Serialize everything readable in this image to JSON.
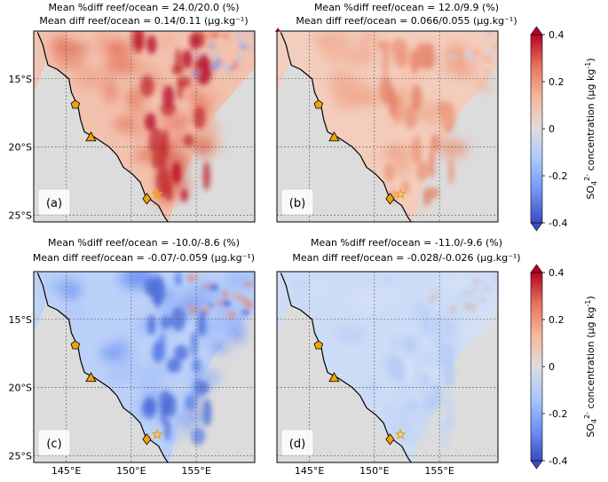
{
  "chart_data": [
    {
      "panel": "(a)",
      "type": "heatmap",
      "title": "Mean %diff reef/ocean = 24.0/20.0 (%)",
      "subtitle": "Mean diff reef/ocean = 0.14/0.11 (µg.kg⁻¹)",
      "scheme": "strong-positive",
      "lat_ticks": [
        "15°S",
        "20°S",
        "25°S"
      ],
      "lon_ticks": []
    },
    {
      "panel": "(b)",
      "type": "heatmap",
      "title": "Mean %diff reef/ocean = 12.0/9.9 (%)",
      "subtitle": "Mean diff reef/ocean = 0.066/0.055 (µg.kg⁻¹)",
      "scheme": "weak-positive",
      "lat_ticks": [],
      "lon_ticks": []
    },
    {
      "panel": "(c)",
      "type": "heatmap",
      "title": "Mean %diff reef/ocean = -10.0/-8.6 (%)",
      "subtitle": "Mean diff reef/ocean = -0.07/-0.059 (µg.kg⁻¹)",
      "scheme": "negative",
      "lat_ticks": [
        "15°S",
        "20°S",
        "25°S"
      ],
      "lon_ticks": [
        "145°E",
        "150°E",
        "155°E"
      ]
    },
    {
      "panel": "(d)",
      "type": "heatmap",
      "title": "Mean %diff reef/ocean = -11.0/-9.6 (%)",
      "subtitle": "Mean diff reef/ocean = -0.028/-0.026 (µg.kg⁻¹)",
      "scheme": "weak-negative",
      "lat_ticks": [],
      "lon_ticks": [
        "145°E",
        "150°E",
        "155°E"
      ]
    }
  ],
  "map_extent": {
    "lon": [
      142.5,
      159.5
    ],
    "lat": [
      -25.5,
      -11.5
    ]
  },
  "gridlines": {
    "lon": [
      145,
      150,
      155
    ],
    "lat": [
      -15,
      -20,
      -25
    ]
  },
  "coastline": [
    [
      142.8,
      -11.6
    ],
    [
      143.2,
      -12.5
    ],
    [
      143.4,
      -13.3
    ],
    [
      143.6,
      -14.0
    ],
    [
      144.3,
      -14.3
    ],
    [
      145.2,
      -15.0
    ],
    [
      145.4,
      -16.0
    ],
    [
      145.9,
      -17.0
    ],
    [
      146.1,
      -18.0
    ],
    [
      146.4,
      -18.9
    ],
    [
      147.2,
      -19.3
    ],
    [
      148.3,
      -20.0
    ],
    [
      148.9,
      -20.6
    ],
    [
      149.4,
      -21.5
    ],
    [
      150.1,
      -22.0
    ],
    [
      150.7,
      -22.6
    ],
    [
      151.1,
      -23.6
    ],
    [
      152.1,
      -24.3
    ],
    [
      152.6,
      -25.2
    ],
    [
      152.9,
      -25.6
    ]
  ],
  "markers": [
    {
      "kind": "pentagon",
      "lon": 145.7,
      "lat": -16.9
    },
    {
      "kind": "triangle",
      "lon": 146.9,
      "lat": -19.3
    },
    {
      "kind": "diamond",
      "lon": 151.2,
      "lat": -23.8
    },
    {
      "kind": "star",
      "lon": 152.0,
      "lat": -23.45
    }
  ],
  "colors": {
    "land": "#dcdcdc",
    "marker": "#f0a30a",
    "coast": "#000000"
  },
  "colorbar": {
    "label_prefix": "SO",
    "label_sub": "4",
    "label_sup": "2-",
    "label_rest": " concentration (µg kg",
    "label_exp": "-1",
    "label_close": ")",
    "vmin": -0.4,
    "vmax": 0.4,
    "ticks": [
      "0.4",
      "0.2",
      "0",
      "-0.2",
      "-0.4"
    ],
    "stops": [
      "#3b4cc0",
      "#6f92f3",
      "#aac7fd",
      "#dddddd",
      "#f7b89c",
      "#e7745b",
      "#b40426"
    ]
  }
}
